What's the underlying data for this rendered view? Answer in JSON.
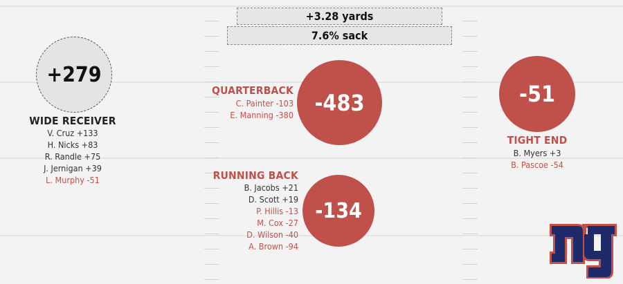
{
  "summary": {
    "yards": "+3.28 yards",
    "sack": "7.6% sack"
  },
  "wide_receiver": {
    "title": "WIDE RECEIVER",
    "total": "+279",
    "players": [
      {
        "text": "V. Cruz +133",
        "sign": "pos"
      },
      {
        "text": "H. Nicks +83",
        "sign": "pos"
      },
      {
        "text": "R. Randle +75",
        "sign": "pos"
      },
      {
        "text": "J. Jernigan +39",
        "sign": "pos"
      },
      {
        "text": "L. Murphy -51",
        "sign": "neg"
      }
    ]
  },
  "quarterback": {
    "title": "QUARTERBACK",
    "total": "-483",
    "players": [
      {
        "text": "C. Painter -103",
        "sign": "neg"
      },
      {
        "text": "E. Manning -380",
        "sign": "neg"
      }
    ]
  },
  "running_back": {
    "title": "RUNNING BACK",
    "total": "-134",
    "players": [
      {
        "text": "B. Jacobs +21",
        "sign": "pos"
      },
      {
        "text": "D. Scott +19",
        "sign": "pos"
      },
      {
        "text": "P. Hillis -13",
        "sign": "neg"
      },
      {
        "text": "M. Cox -27",
        "sign": "neg"
      },
      {
        "text": "D. Wilson -40",
        "sign": "neg"
      },
      {
        "text": "A. Brown -94",
        "sign": "neg"
      }
    ]
  },
  "tight_end": {
    "title": "TIGHT END",
    "total": "-51",
    "players": [
      {
        "text": "B. Myers +3",
        "sign": "pos"
      },
      {
        "text": "B. Pascoe -54",
        "sign": "neg"
      }
    ]
  },
  "colors": {
    "negative": "#c0504a",
    "positive_text": "#333333",
    "logo_blue": "#1f2a6b",
    "logo_red": "#c0504a"
  },
  "logo": {
    "name": "ny-logo-icon",
    "text": "ny"
  }
}
